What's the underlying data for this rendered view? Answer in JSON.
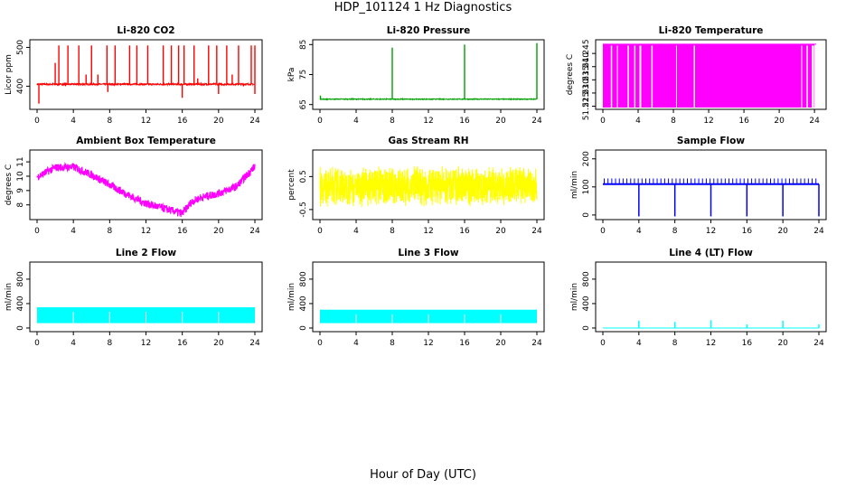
{
  "figure": {
    "title": "HDP_101124  1 Hz Diagnostics",
    "xlabel": "Hour of Day (UTC)"
  },
  "chart_data": [
    {
      "type": "line",
      "title": "Li-820 CO2",
      "ylabel": "Licor ppm",
      "color": "#ff0000",
      "xlim": [
        0,
        24
      ],
      "ylim": [
        345,
        515
      ],
      "xticks": [
        0,
        4,
        8,
        12,
        16,
        20,
        24
      ],
      "yticks": [
        400,
        500
      ],
      "series": [
        {
          "baseline": 405,
          "noise": 4,
          "spikes": [
            [
              2.0,
              460
            ],
            [
              2.4,
              505
            ],
            [
              3.4,
              505
            ],
            [
              4.6,
              505
            ],
            [
              5.4,
              430
            ],
            [
              6.0,
              505
            ],
            [
              6.7,
              430
            ],
            [
              7.7,
              505
            ],
            [
              8.6,
              505
            ],
            [
              10.2,
              505
            ],
            [
              11.0,
              505
            ],
            [
              12.2,
              505
            ],
            [
              13.9,
              505
            ],
            [
              14.8,
              505
            ],
            [
              15.6,
              505
            ],
            [
              16.2,
              505
            ],
            [
              17.3,
              505
            ],
            [
              17.7,
              420
            ],
            [
              18.9,
              505
            ],
            [
              19.8,
              505
            ],
            [
              20.9,
              505
            ],
            [
              21.5,
              430
            ],
            [
              22.2,
              505
            ],
            [
              23.6,
              505
            ],
            [
              24.0,
              505
            ]
          ],
          "dips": [
            [
              0.2,
              355
            ],
            [
              7.8,
              385
            ],
            [
              16.0,
              370
            ],
            [
              20.0,
              380
            ],
            [
              24.0,
              380
            ]
          ]
        }
      ]
    },
    {
      "type": "line",
      "title": "Li-820 Pressure",
      "ylabel": "kPa",
      "color": "#00a000",
      "xlim": [
        0,
        24
      ],
      "ylim": [
        64,
        86
      ],
      "xticks": [
        0,
        4,
        8,
        12,
        16,
        20,
        24
      ],
      "yticks": [
        65,
        75,
        85
      ],
      "series": [
        {
          "baseline": 66.8,
          "noise": 0.25,
          "spikes": [
            [
              8.0,
              84
            ],
            [
              16.0,
              85
            ],
            [
              24.0,
              85.5
            ],
            [
              0.05,
              68
            ]
          ]
        }
      ]
    },
    {
      "type": "area",
      "title": "Li-820 Temperature",
      "ylabel": "degrees C",
      "color": "#ff00ff",
      "xlim": [
        0,
        24.5
      ],
      "ylim": [
        51.2245,
        51.2495
      ],
      "xticks": [
        0,
        4,
        8,
        12,
        16,
        20,
        24
      ],
      "yticks": [
        51.225,
        51.23,
        51.235,
        51.24,
        51.245
      ],
      "ytick_labels": [
        "51.225",
        "51.230",
        "51.235",
        "51.240",
        "51.245"
      ],
      "series": [
        {
          "level": 51.2485,
          "gaps": [
            [
              0.9,
              1.05
            ],
            [
              1.6,
              1.7
            ],
            [
              2.8,
              2.95
            ],
            [
              3.55,
              3.7
            ],
            [
              4.15,
              4.35
            ],
            [
              5.5,
              5.65
            ],
            [
              8.3,
              8.4
            ],
            [
              10.3,
              10.45
            ],
            [
              22.5,
              22.6
            ],
            [
              23.1,
              23.25
            ],
            [
              23.7,
              23.95
            ]
          ]
        }
      ]
    },
    {
      "type": "line",
      "title": "Ambient Box Temperature",
      "ylabel": "degrees C",
      "color": "#ff00ff",
      "xlim": [
        0,
        24
      ],
      "ylim": [
        7.1,
        11.7
      ],
      "xticks": [
        0,
        4,
        8,
        12,
        16,
        20,
        24
      ],
      "yticks": [
        8,
        9,
        10,
        11
      ],
      "series": [
        {
          "curve": [
            [
              0,
              9.95
            ],
            [
              2,
              10.6
            ],
            [
              4,
              10.65
            ],
            [
              6,
              10.1
            ],
            [
              8,
              9.4
            ],
            [
              10,
              8.7
            ],
            [
              12,
              8.1
            ],
            [
              14,
              7.75
            ],
            [
              16,
              7.4
            ],
            [
              17,
              8.2
            ],
            [
              18,
              8.5
            ],
            [
              20,
              8.8
            ],
            [
              22,
              9.3
            ],
            [
              23,
              10.0
            ],
            [
              24,
              10.7
            ]
          ],
          "band": 0.55
        }
      ]
    },
    {
      "type": "line",
      "title": "Gas Stream RH",
      "ylabel": "percent",
      "color": "#ffff00",
      "xlim": [
        0,
        24
      ],
      "ylim": [
        -0.75,
        1.25
      ],
      "xticks": [
        0,
        4,
        8,
        12,
        16,
        20,
        24
      ],
      "yticks": [
        -0.5,
        0.5
      ],
      "series": [
        {
          "center": 0.2,
          "band": 0.55
        }
      ]
    },
    {
      "type": "line",
      "title": "Sample Flow",
      "ylabel": "ml/min",
      "color": "#0000ff",
      "xlim": [
        0,
        24
      ],
      "ylim": [
        -10,
        225
      ],
      "xticks": [
        0,
        4,
        8,
        12,
        16,
        20,
        24
      ],
      "yticks": [
        0,
        100,
        200
      ],
      "series": [
        {
          "baseline": 110,
          "spikes_to": 130,
          "dips_at": [
            4,
            8,
            12,
            16,
            20,
            24
          ],
          "dip_to": -5
        }
      ]
    },
    {
      "type": "area",
      "title": "Line 2 Flow",
      "ylabel": "ml/min",
      "color": "#00ffff",
      "xlim": [
        0,
        24
      ],
      "ylim": [
        -30,
        1050
      ],
      "xticks": [
        0,
        4,
        8,
        12,
        16,
        20,
        24
      ],
      "yticks": [
        0,
        400,
        800
      ],
      "series": [
        {
          "low": 80,
          "high": 340,
          "breaks": [
            4,
            8,
            12,
            16,
            20
          ]
        }
      ]
    },
    {
      "type": "area",
      "title": "Line 3 Flow",
      "ylabel": "ml/min",
      "color": "#00ffff",
      "xlim": [
        0,
        24
      ],
      "ylim": [
        -30,
        1050
      ],
      "xticks": [
        0,
        4,
        8,
        12,
        16,
        20,
        24
      ],
      "yticks": [
        0,
        400,
        800
      ],
      "series": [
        {
          "low": 80,
          "high": 300,
          "breaks": [
            4,
            8,
            12,
            16,
            20
          ]
        }
      ]
    },
    {
      "type": "line",
      "title": "Line 4 (LT) Flow",
      "ylabel": "ml/min",
      "color": "#00ffff",
      "xlim": [
        0,
        24
      ],
      "ylim": [
        -30,
        1050
      ],
      "xticks": [
        0,
        4,
        8,
        12,
        16,
        20,
        24
      ],
      "yticks": [
        0,
        400,
        800
      ],
      "series": [
        {
          "baseline": 0,
          "spikes": [
            [
              4,
              120
            ],
            [
              8,
              100
            ],
            [
              12,
              130
            ],
            [
              16,
              60
            ],
            [
              20,
              120
            ],
            [
              24,
              60
            ]
          ]
        }
      ]
    }
  ]
}
